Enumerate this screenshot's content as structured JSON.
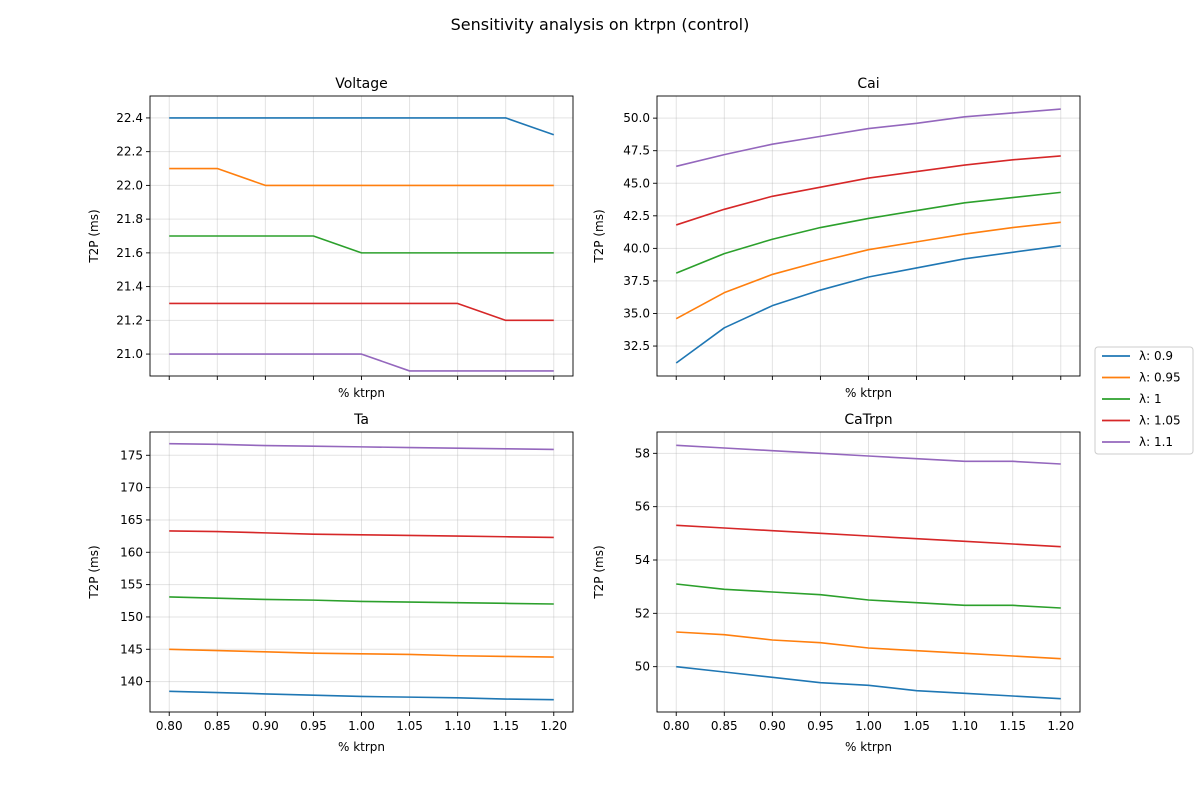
{
  "suptitle": "Sensitivity analysis on ktrpn (control)",
  "x_ticks": [
    "0.80",
    "0.85",
    "0.90",
    "0.95",
    "1.00",
    "1.05",
    "1.10",
    "1.15",
    "1.20"
  ],
  "legend": {
    "placement": "right-center",
    "entries": [
      {
        "label": "λ: 0.9",
        "color": "#1f77b4"
      },
      {
        "label": "λ: 0.95",
        "color": "#ff7f0e"
      },
      {
        "label": "λ: 1",
        "color": "#2ca02c"
      },
      {
        "label": "λ: 1.05",
        "color": "#d62728"
      },
      {
        "label": "λ: 1.1",
        "color": "#9467bd"
      }
    ]
  },
  "chart_data": [
    {
      "type": "line",
      "title": "Voltage",
      "xlabel": "% ktrpn",
      "ylabel": "T2P (ms)",
      "x": [
        0.8,
        0.85,
        0.9,
        0.95,
        1.0,
        1.05,
        1.1,
        1.15,
        1.2
      ],
      "xlim": [
        0.78,
        1.22
      ],
      "ylim": [
        20.87,
        22.53
      ],
      "yticks": [
        "21.0",
        "21.2",
        "21.4",
        "21.6",
        "21.8",
        "22.0",
        "22.2",
        "22.4"
      ],
      "show_xticklabels": false,
      "grid": true,
      "series": [
        {
          "name": "λ: 0.9",
          "color": "#1f77b4",
          "values": [
            22.4,
            22.4,
            22.4,
            22.4,
            22.4,
            22.4,
            22.4,
            22.4,
            22.3
          ]
        },
        {
          "name": "λ: 0.95",
          "color": "#ff7f0e",
          "values": [
            22.1,
            22.1,
            22.0,
            22.0,
            22.0,
            22.0,
            22.0,
            22.0,
            22.0
          ]
        },
        {
          "name": "λ: 1",
          "color": "#2ca02c",
          "values": [
            21.7,
            21.7,
            21.7,
            21.7,
            21.6,
            21.6,
            21.6,
            21.6,
            21.6
          ]
        },
        {
          "name": "λ: 1.05",
          "color": "#d62728",
          "values": [
            21.3,
            21.3,
            21.3,
            21.3,
            21.3,
            21.3,
            21.3,
            21.2,
            21.2
          ]
        },
        {
          "name": "λ: 1.1",
          "color": "#9467bd",
          "values": [
            21.0,
            21.0,
            21.0,
            21.0,
            21.0,
            20.9,
            20.9,
            20.9,
            20.9
          ]
        }
      ]
    },
    {
      "type": "line",
      "title": "Cai",
      "xlabel": "% ktrpn",
      "ylabel": "T2P (ms)",
      "x": [
        0.8,
        0.85,
        0.9,
        0.95,
        1.0,
        1.05,
        1.1,
        1.15,
        1.2
      ],
      "xlim": [
        0.78,
        1.22
      ],
      "ylim": [
        30.2,
        51.7
      ],
      "yticks": [
        "32.5",
        "35.0",
        "37.5",
        "40.0",
        "42.5",
        "45.0",
        "47.5",
        "50.0"
      ],
      "show_xticklabels": false,
      "grid": true,
      "series": [
        {
          "name": "λ: 0.9",
          "color": "#1f77b4",
          "values": [
            31.2,
            33.9,
            35.6,
            36.8,
            37.8,
            38.5,
            39.2,
            39.7,
            40.2
          ]
        },
        {
          "name": "λ: 0.95",
          "color": "#ff7f0e",
          "values": [
            34.6,
            36.6,
            38.0,
            39.0,
            39.9,
            40.5,
            41.1,
            41.6,
            42.0
          ]
        },
        {
          "name": "λ: 1",
          "color": "#2ca02c",
          "values": [
            38.1,
            39.6,
            40.7,
            41.6,
            42.3,
            42.9,
            43.5,
            43.9,
            44.3
          ]
        },
        {
          "name": "λ: 1.05",
          "color": "#d62728",
          "values": [
            41.8,
            43.0,
            44.0,
            44.7,
            45.4,
            45.9,
            46.4,
            46.8,
            47.1
          ]
        },
        {
          "name": "λ: 1.1",
          "color": "#9467bd",
          "values": [
            46.3,
            47.2,
            48.0,
            48.6,
            49.2,
            49.6,
            50.1,
            50.4,
            50.7
          ]
        }
      ]
    },
    {
      "type": "line",
      "title": "Ta",
      "xlabel": "% ktrpn",
      "ylabel": "T2P (ms)",
      "x": [
        0.8,
        0.85,
        0.9,
        0.95,
        1.0,
        1.05,
        1.1,
        1.15,
        1.2
      ],
      "xlim": [
        0.78,
        1.22
      ],
      "ylim": [
        135.3,
        178.6
      ],
      "yticks": [
        "140",
        "145",
        "150",
        "155",
        "160",
        "165",
        "170",
        "175"
      ],
      "show_xticklabels": true,
      "grid": true,
      "series": [
        {
          "name": "λ: 0.9",
          "color": "#1f77b4",
          "values": [
            138.5,
            138.3,
            138.1,
            137.9,
            137.7,
            137.6,
            137.5,
            137.3,
            137.2
          ]
        },
        {
          "name": "λ: 0.95",
          "color": "#ff7f0e",
          "values": [
            145.0,
            144.8,
            144.6,
            144.4,
            144.3,
            144.2,
            144.0,
            143.9,
            143.8
          ]
        },
        {
          "name": "λ: 1",
          "color": "#2ca02c",
          "values": [
            153.1,
            152.9,
            152.7,
            152.6,
            152.4,
            152.3,
            152.2,
            152.1,
            152.0
          ]
        },
        {
          "name": "λ: 1.05",
          "color": "#d62728",
          "values": [
            163.3,
            163.2,
            163.0,
            162.8,
            162.7,
            162.6,
            162.5,
            162.4,
            162.3
          ]
        },
        {
          "name": "λ: 1.1",
          "color": "#9467bd",
          "values": [
            176.8,
            176.7,
            176.5,
            176.4,
            176.3,
            176.2,
            176.1,
            176.0,
            175.9
          ]
        }
      ]
    },
    {
      "type": "line",
      "title": "CaTrpn",
      "xlabel": "% ktrpn",
      "ylabel": "T2P (ms)",
      "x": [
        0.8,
        0.85,
        0.9,
        0.95,
        1.0,
        1.05,
        1.1,
        1.15,
        1.2
      ],
      "xlim": [
        0.78,
        1.22
      ],
      "ylim": [
        48.3,
        58.8
      ],
      "yticks": [
        "50",
        "52",
        "54",
        "56",
        "58"
      ],
      "show_xticklabels": true,
      "grid": true,
      "series": [
        {
          "name": "λ: 0.9",
          "color": "#1f77b4",
          "values": [
            50.0,
            49.8,
            49.6,
            49.4,
            49.3,
            49.1,
            49.0,
            48.9,
            48.8
          ]
        },
        {
          "name": "λ: 0.95",
          "color": "#ff7f0e",
          "values": [
            51.3,
            51.2,
            51.0,
            50.9,
            50.7,
            50.6,
            50.5,
            50.4,
            50.3
          ]
        },
        {
          "name": "λ: 1",
          "color": "#2ca02c",
          "values": [
            53.1,
            52.9,
            52.8,
            52.7,
            52.5,
            52.4,
            52.3,
            52.3,
            52.2
          ]
        },
        {
          "name": "λ: 1.05",
          "color": "#d62728",
          "values": [
            55.3,
            55.2,
            55.1,
            55.0,
            54.9,
            54.8,
            54.7,
            54.6,
            54.5
          ]
        },
        {
          "name": "λ: 1.1",
          "color": "#9467bd",
          "values": [
            58.3,
            58.2,
            58.1,
            58.0,
            57.9,
            57.8,
            57.7,
            57.7,
            57.6
          ]
        }
      ]
    }
  ]
}
